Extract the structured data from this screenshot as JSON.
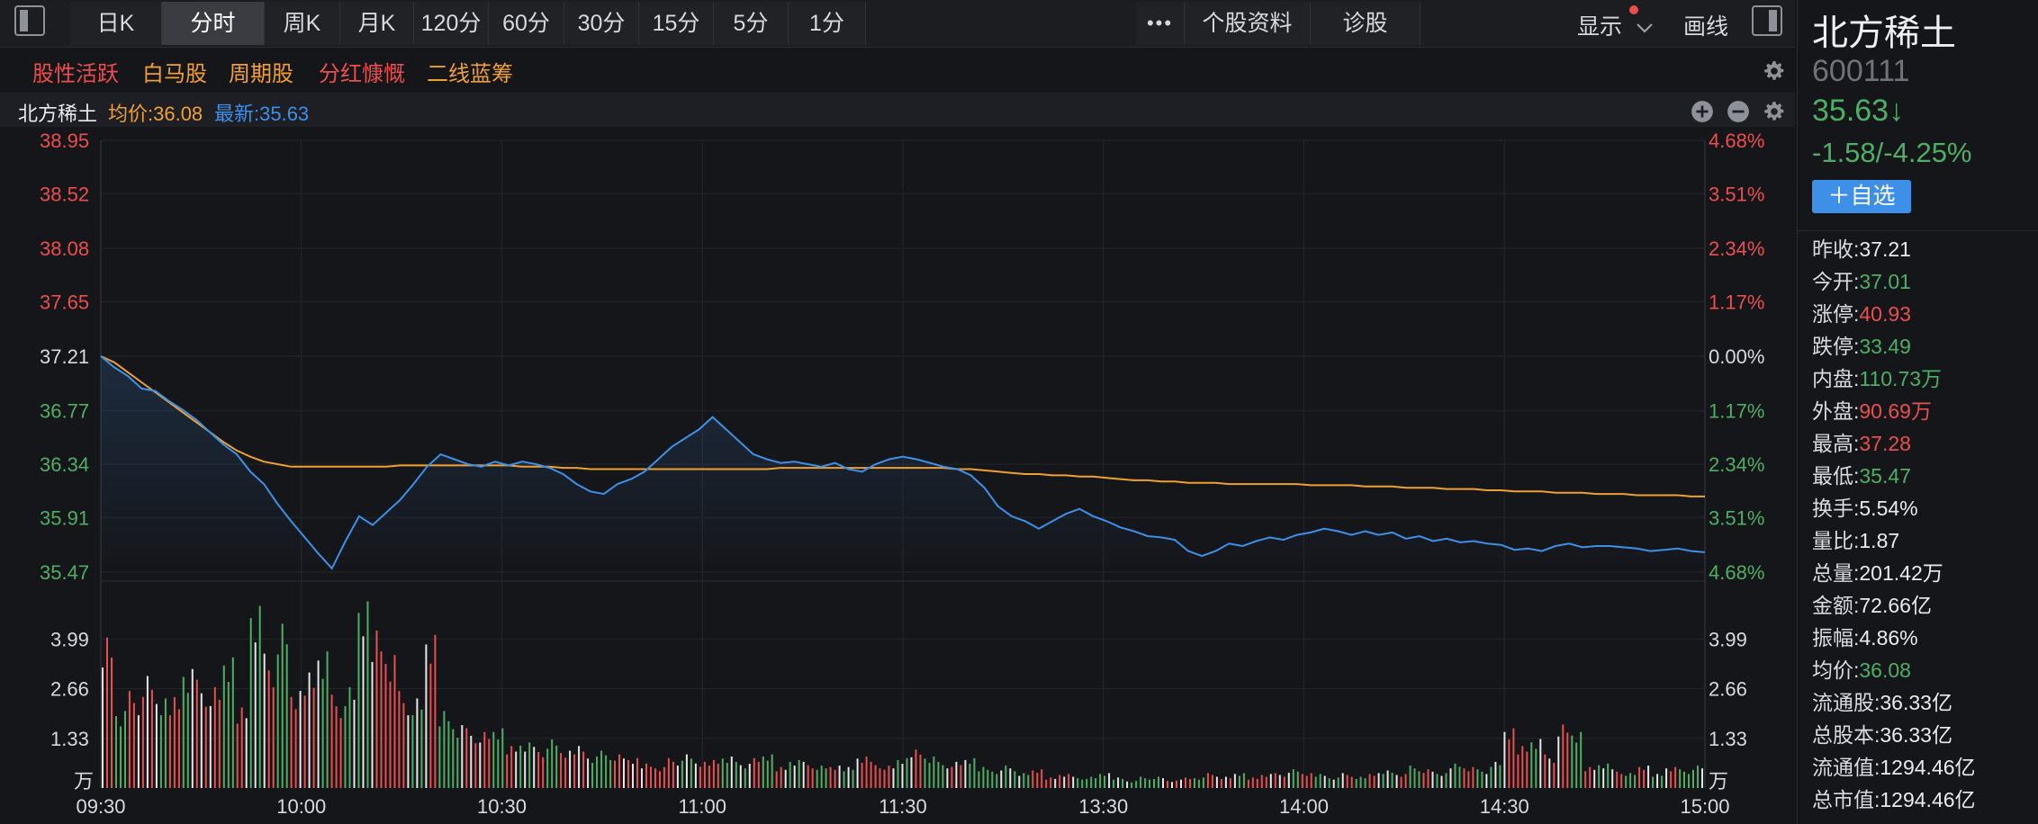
{
  "toolbar": {
    "periods": [
      "日K",
      "分时",
      "周K",
      "月K",
      "120分",
      "60分",
      "30分",
      "15分",
      "5分",
      "1分"
    ],
    "active_period": "分时",
    "more_label": "•••",
    "stock_profile_label": "个股资料",
    "diagnose_label": "诊股",
    "display_label": "显示",
    "draw_label": "画线"
  },
  "tags": [
    {
      "label": "股性活跃",
      "color": "#ec4d4d"
    },
    {
      "label": "白马股",
      "color": "#f0a030"
    },
    {
      "label": "周期股",
      "color": "#f0a030"
    },
    {
      "label": "分红慷慨",
      "color": "#ec4d4d"
    },
    {
      "label": "二线蓝筹",
      "color": "#f0a030"
    }
  ],
  "infobar": {
    "name": "北方稀土",
    "avg_label": "均价:36.08",
    "last_label": "最新:35.63"
  },
  "colors": {
    "up": "#ec4d4d",
    "down": "#4caf63",
    "price_line": "#3d8fe8",
    "avg_line": "#f0a030",
    "accent_button": "#3d8fe8"
  },
  "stock": {
    "name": "北方稀土",
    "code": "600111",
    "price": "35.63",
    "arrow": "↓",
    "change": "-1.58/-4.25%",
    "add_watch_label": "＋自选"
  },
  "stats": [
    {
      "k": "昨收:",
      "v": "37.21",
      "c": "white"
    },
    {
      "k": "今开:",
      "v": "37.01",
      "c": "green"
    },
    {
      "k": "涨停:",
      "v": "40.93",
      "c": "red"
    },
    {
      "k": "跌停:",
      "v": "33.49",
      "c": "green"
    },
    {
      "k": "内盘:",
      "v": "110.73万",
      "c": "green"
    },
    {
      "k": "外盘:",
      "v": "90.69万",
      "c": "red"
    },
    {
      "k": "最高:",
      "v": "37.28",
      "c": "red"
    },
    {
      "k": "最低:",
      "v": "35.47",
      "c": "green"
    },
    {
      "k": "换手:",
      "v": "5.54%",
      "c": "white"
    },
    {
      "k": "量比:",
      "v": "1.87",
      "c": "white"
    },
    {
      "k": "总量:",
      "v": "201.42万",
      "c": "white"
    },
    {
      "k": "金额:",
      "v": "72.66亿",
      "c": "white"
    },
    {
      "k": "振幅:",
      "v": "4.86%",
      "c": "white"
    },
    {
      "k": "均价:",
      "v": "36.08",
      "c": "green"
    },
    {
      "k": "流通股:",
      "v": "36.33亿",
      "c": "white"
    },
    {
      "k": "总股本:",
      "v": "36.33亿",
      "c": "white"
    },
    {
      "k": "流通值:",
      "v": "1294.46亿",
      "c": "white"
    },
    {
      "k": "总市值:",
      "v": "1294.46亿",
      "c": "white"
    }
  ],
  "chart_data": {
    "type": "line",
    "price_axis": {
      "ticks": [
        "38.95",
        "38.52",
        "38.08",
        "37.65",
        "37.21",
        "36.77",
        "36.34",
        "35.91",
        "35.47"
      ],
      "min": 35.47,
      "max": 38.95,
      "prev_close": 37.21
    },
    "pct_axis": {
      "ticks": [
        "4.68%",
        "3.51%",
        "2.34%",
        "1.17%",
        "0.00%",
        "1.17%",
        "2.34%",
        "3.51%",
        "4.68%"
      ]
    },
    "volume_axis": {
      "ticks": [
        "3.99",
        "2.66",
        "1.33"
      ],
      "unit": "万",
      "max": 5.3
    },
    "x_axis": {
      "ticks": [
        "09:30",
        "10:00",
        "10:30",
        "11:00",
        "11:30",
        "13:30",
        "14:00",
        "14:30",
        "15:00"
      ]
    },
    "series": [
      {
        "name": "最新",
        "values": [
          37.21,
          37.12,
          37.05,
          36.95,
          36.93,
          36.85,
          36.78,
          36.7,
          36.6,
          36.5,
          36.42,
          36.28,
          36.18,
          36.02,
          35.88,
          35.75,
          35.62,
          35.5,
          35.72,
          35.92,
          35.85,
          35.95,
          36.05,
          36.18,
          36.32,
          36.42,
          36.38,
          36.34,
          36.32,
          36.36,
          36.33,
          36.36,
          36.34,
          36.31,
          36.26,
          36.18,
          36.12,
          36.1,
          36.18,
          36.22,
          36.28,
          36.38,
          36.48,
          36.55,
          36.62,
          36.72,
          36.62,
          36.52,
          36.42,
          36.38,
          36.35,
          36.36,
          36.34,
          36.32,
          36.35,
          36.3,
          36.28,
          36.34,
          36.38,
          36.4,
          36.38,
          36.35,
          36.32,
          36.3,
          36.25,
          36.15,
          36.0,
          35.92,
          35.88,
          35.82,
          35.88,
          35.94,
          35.98,
          35.92,
          35.88,
          35.83,
          35.8,
          35.76,
          35.75,
          35.73,
          35.64,
          35.6,
          35.64,
          35.7,
          35.68,
          35.72,
          35.75,
          35.73,
          35.77,
          35.79,
          35.82,
          35.8,
          35.77,
          35.8,
          35.77,
          35.79,
          35.74,
          35.76,
          35.72,
          35.74,
          35.71,
          35.72,
          35.7,
          35.69,
          35.65,
          35.66,
          35.64,
          35.68,
          35.7,
          35.67,
          35.68,
          35.68,
          35.67,
          35.66,
          35.64,
          35.65,
          35.66,
          35.64,
          35.63
        ],
        "color": "#3d8fe8"
      },
      {
        "name": "均价",
        "values": [
          37.21,
          37.16,
          37.08,
          37.0,
          36.92,
          36.84,
          36.76,
          36.68,
          36.6,
          36.52,
          36.45,
          36.4,
          36.36,
          36.34,
          36.32,
          36.32,
          36.32,
          36.32,
          36.32,
          36.32,
          36.32,
          36.32,
          36.33,
          36.33,
          36.33,
          36.33,
          36.33,
          36.33,
          36.33,
          36.33,
          36.33,
          36.32,
          36.32,
          36.32,
          36.31,
          36.31,
          36.3,
          36.3,
          36.3,
          36.3,
          36.3,
          36.3,
          36.3,
          36.3,
          36.3,
          36.3,
          36.3,
          36.3,
          36.3,
          36.3,
          36.31,
          36.31,
          36.31,
          36.31,
          36.31,
          36.31,
          36.31,
          36.31,
          36.31,
          36.31,
          36.31,
          36.31,
          36.31,
          36.3,
          36.3,
          36.29,
          36.28,
          36.27,
          36.26,
          36.26,
          36.25,
          36.25,
          36.24,
          36.24,
          36.23,
          36.22,
          36.21,
          36.21,
          36.2,
          36.2,
          36.19,
          36.19,
          36.19,
          36.18,
          36.18,
          36.18,
          36.18,
          36.18,
          36.18,
          36.17,
          36.17,
          36.17,
          36.17,
          36.16,
          36.16,
          36.16,
          36.15,
          36.15,
          36.15,
          36.14,
          36.14,
          36.14,
          36.13,
          36.13,
          36.12,
          36.12,
          36.12,
          36.11,
          36.11,
          36.11,
          36.1,
          36.1,
          36.1,
          36.09,
          36.09,
          36.09,
          36.09,
          36.08,
          36.08
        ],
        "color": "#f0a030"
      }
    ],
    "volumes": [
      4.3,
      2.2,
      2.6,
      3.0,
      2.4,
      2.6,
      3.4,
      2.9,
      2.7,
      3.5,
      2.3,
      5.2,
      3.6,
      4.4,
      2.6,
      3.3,
      3.9,
      2.5,
      2.7,
      5.0,
      4.5,
      3.8,
      2.6,
      2.4,
      4.1,
      2.2,
      1.8,
      1.6,
      1.5,
      1.6,
      1.2,
      1.3,
      1.1,
      1.3,
      1.0,
      1.2,
      0.9,
      1.0,
      0.9,
      0.8,
      0.7,
      0.6,
      0.8,
      0.9,
      0.7,
      0.8,
      0.9,
      0.7,
      0.8,
      0.9,
      0.6,
      0.8,
      0.7,
      0.6,
      0.6,
      0.6,
      0.9,
      0.7,
      0.6,
      0.8,
      1.1,
      0.9,
      0.7,
      0.7,
      0.8,
      0.6,
      0.5,
      0.6,
      0.4,
      0.5,
      0.3,
      0.4,
      0.3,
      0.3,
      0.4,
      0.3,
      0.2,
      0.3,
      0.3,
      0.2,
      0.3,
      0.3,
      0.4,
      0.3,
      0.4,
      0.3,
      0.4,
      0.4,
      0.5,
      0.4,
      0.4,
      0.3,
      0.4,
      0.3,
      0.4,
      0.5,
      0.4,
      0.6,
      0.5,
      0.4,
      0.7,
      0.6,
      0.5,
      0.7,
      1.6,
      1.2,
      1.4,
      0.9,
      1.7,
      1.5,
      0.6,
      0.7,
      0.5,
      0.4,
      0.6,
      0.4,
      0.6,
      0.5,
      0.6
    ],
    "volume_up": [
      1,
      0,
      1,
      1,
      0,
      1,
      0,
      1,
      1,
      0,
      1,
      0,
      1,
      0,
      1,
      1,
      0,
      1,
      0,
      0,
      1,
      1,
      1,
      0,
      1,
      0,
      0,
      1,
      1,
      0,
      1,
      0,
      1,
      0,
      1,
      1,
      0,
      0,
      1,
      1,
      1,
      1,
      1,
      0,
      1,
      1,
      0,
      0,
      1,
      0,
      1,
      0,
      1,
      0,
      1,
      0,
      1,
      1,
      1,
      0,
      1,
      0,
      0,
      1,
      0,
      0,
      0,
      0,
      0,
      1,
      1,
      1,
      0,
      0,
      0,
      0,
      0,
      0,
      0,
      1,
      1,
      0,
      1,
      1,
      0,
      1,
      1,
      1,
      0,
      1,
      0,
      0,
      1,
      0,
      1,
      0,
      1,
      0,
      1,
      0,
      0,
      1,
      0,
      0,
      1,
      1,
      0,
      1,
      1,
      0,
      1,
      0,
      1,
      0,
      1,
      0,
      1,
      0,
      0
    ]
  }
}
